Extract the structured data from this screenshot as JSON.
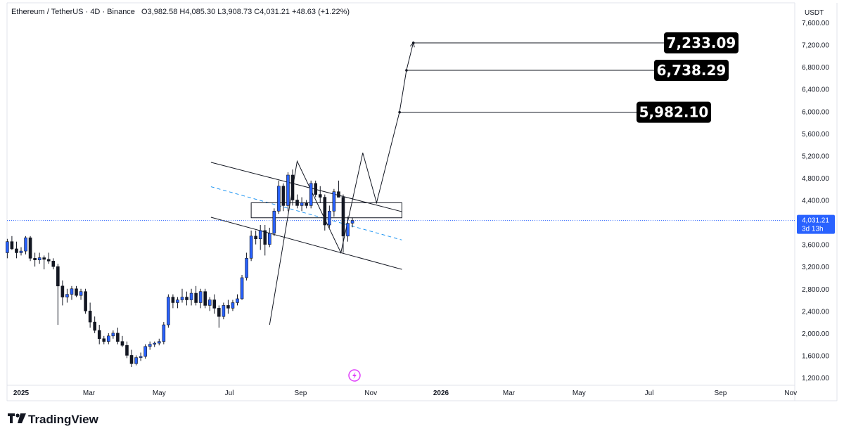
{
  "header": {
    "symbol": "Ethereum / TetherUS",
    "interval": "4D",
    "exchange": "Binance",
    "ohlc_text": "O3,982.58 H4,085.30 L3,908.73 C4,031.21 +48.63 (+1.22%)"
  },
  "currency": "USDT",
  "current_price": {
    "value": 4031.21,
    "label": "4,031.21",
    "countdown": "3d 13h"
  },
  "watermark": "TradingView",
  "colors": {
    "up": "#2962ff",
    "down": "#131722",
    "price_tag": "#2962ff",
    "target_box": "#000000",
    "midline": "#2196f3"
  },
  "targets": [
    {
      "value": 7233.09,
      "label": "7,233.09"
    },
    {
      "value": 6738.29,
      "label": "6,738.29"
    },
    {
      "value": 5982.1,
      "label": "5,982.10"
    }
  ],
  "chart_data": {
    "type": "candlestick",
    "y_axis": {
      "ylim": [
        1200,
        7600
      ],
      "ticks": [
        1200,
        1600,
        2000,
        2400,
        2800,
        3200,
        3600,
        4000,
        4400,
        4800,
        5200,
        5600,
        6000,
        6400,
        6800,
        7200,
        7600
      ],
      "tick_labels": [
        "1,200.00",
        "1,600.00",
        "2,000.00",
        "2,400.00",
        "2,800.00",
        "3,200.00",
        "3,600.00",
        "4,000.00",
        "4,400.00",
        "4,800.00",
        "5,200.00",
        "5,600.00",
        "6,000.00",
        "6,400.00",
        "6,800.00",
        "7,200.00",
        "7,600.00"
      ],
      "position": "right"
    },
    "x_axis": {
      "labels": [
        {
          "label": "2025",
          "date": "2025-01-01",
          "bold": true
        },
        {
          "label": "Mar",
          "date": "2025-03-01",
          "bold": false
        },
        {
          "label": "May",
          "date": "2025-05-01",
          "bold": false
        },
        {
          "label": "Jul",
          "date": "2025-07-01",
          "bold": false
        },
        {
          "label": "Sep",
          "date": "2025-09-01",
          "bold": false
        },
        {
          "label": "Nov",
          "date": "2025-11-01",
          "bold": false
        },
        {
          "label": "2026",
          "date": "2026-01-01",
          "bold": true
        },
        {
          "label": "Mar",
          "date": "2026-03-01",
          "bold": false
        },
        {
          "label": "May",
          "date": "2026-05-01",
          "bold": false
        },
        {
          "label": "Jul",
          "date": "2026-07-01",
          "bold": false
        },
        {
          "label": "Sep",
          "date": "2026-09-01",
          "bold": false
        },
        {
          "label": "Nov",
          "date": "2026-11-01",
          "bold": false
        }
      ]
    },
    "candles": [
      {
        "t": "2024-12-20",
        "o": 3450,
        "h": 3700,
        "l": 3350,
        "c": 3650
      },
      {
        "t": "2024-12-24",
        "o": 3650,
        "h": 3750,
        "l": 3500,
        "c": 3520
      },
      {
        "t": "2024-12-28",
        "o": 3520,
        "h": 3650,
        "l": 3350,
        "c": 3450
      },
      {
        "t": "2025-01-01",
        "o": 3450,
        "h": 3550,
        "l": 3400,
        "c": 3480
      },
      {
        "t": "2025-01-05",
        "o": 3480,
        "h": 3750,
        "l": 3420,
        "c": 3720
      },
      {
        "t": "2025-01-09",
        "o": 3720,
        "h": 3750,
        "l": 3300,
        "c": 3350
      },
      {
        "t": "2025-01-13",
        "o": 3350,
        "h": 3450,
        "l": 3200,
        "c": 3320
      },
      {
        "t": "2025-01-17",
        "o": 3320,
        "h": 3450,
        "l": 3250,
        "c": 3360
      },
      {
        "t": "2025-01-21",
        "o": 3360,
        "h": 3400,
        "l": 3150,
        "c": 3330
      },
      {
        "t": "2025-01-25",
        "o": 3330,
        "h": 3450,
        "l": 3250,
        "c": 3300
      },
      {
        "t": "2025-01-29",
        "o": 3300,
        "h": 3350,
        "l": 3150,
        "c": 3200
      },
      {
        "t": "2025-02-02",
        "o": 3200,
        "h": 3250,
        "l": 2150,
        "c": 2850
      },
      {
        "t": "2025-02-06",
        "o": 2850,
        "h": 2950,
        "l": 2500,
        "c": 2650
      },
      {
        "t": "2025-02-10",
        "o": 2650,
        "h": 2800,
        "l": 2550,
        "c": 2700
      },
      {
        "t": "2025-02-14",
        "o": 2700,
        "h": 2850,
        "l": 2600,
        "c": 2800
      },
      {
        "t": "2025-02-18",
        "o": 2800,
        "h": 2850,
        "l": 2650,
        "c": 2680
      },
      {
        "t": "2025-02-22",
        "o": 2680,
        "h": 2800,
        "l": 2600,
        "c": 2750
      },
      {
        "t": "2025-02-26",
        "o": 2750,
        "h": 2800,
        "l": 2350,
        "c": 2400
      },
      {
        "t": "2025-03-02",
        "o": 2400,
        "h": 2550,
        "l": 2100,
        "c": 2200
      },
      {
        "t": "2025-03-06",
        "o": 2200,
        "h": 2300,
        "l": 2000,
        "c": 2050
      },
      {
        "t": "2025-03-10",
        "o": 2050,
        "h": 2150,
        "l": 1800,
        "c": 1900
      },
      {
        "t": "2025-03-14",
        "o": 1900,
        "h": 1950,
        "l": 1800,
        "c": 1850
      },
      {
        "t": "2025-03-18",
        "o": 1850,
        "h": 2000,
        "l": 1800,
        "c": 1950
      },
      {
        "t": "2025-03-22",
        "o": 1950,
        "h": 2050,
        "l": 1900,
        "c": 2000
      },
      {
        "t": "2025-03-26",
        "o": 2000,
        "h": 2100,
        "l": 1800,
        "c": 1850
      },
      {
        "t": "2025-03-30",
        "o": 1850,
        "h": 1950,
        "l": 1750,
        "c": 1780
      },
      {
        "t": "2025-04-03",
        "o": 1780,
        "h": 1850,
        "l": 1550,
        "c": 1600
      },
      {
        "t": "2025-04-07",
        "o": 1600,
        "h": 1700,
        "l": 1390,
        "c": 1450
      },
      {
        "t": "2025-04-11",
        "o": 1450,
        "h": 1600,
        "l": 1420,
        "c": 1560
      },
      {
        "t": "2025-04-15",
        "o": 1560,
        "h": 1650,
        "l": 1500,
        "c": 1580
      },
      {
        "t": "2025-04-19",
        "o": 1580,
        "h": 1800,
        "l": 1540,
        "c": 1760
      },
      {
        "t": "2025-04-23",
        "o": 1760,
        "h": 1850,
        "l": 1700,
        "c": 1800
      },
      {
        "t": "2025-04-27",
        "o": 1800,
        "h": 1850,
        "l": 1750,
        "c": 1820
      },
      {
        "t": "2025-05-01",
        "o": 1820,
        "h": 1900,
        "l": 1780,
        "c": 1850
      },
      {
        "t": "2025-05-05",
        "o": 1850,
        "h": 2200,
        "l": 1800,
        "c": 2150
      },
      {
        "t": "2025-05-09",
        "o": 2150,
        "h": 2700,
        "l": 2100,
        "c": 2650
      },
      {
        "t": "2025-05-13",
        "o": 2650,
        "h": 2700,
        "l": 2450,
        "c": 2550
      },
      {
        "t": "2025-05-17",
        "o": 2550,
        "h": 2650,
        "l": 2450,
        "c": 2600
      },
      {
        "t": "2025-05-21",
        "o": 2600,
        "h": 2800,
        "l": 2550,
        "c": 2650
      },
      {
        "t": "2025-05-25",
        "o": 2650,
        "h": 2750,
        "l": 2500,
        "c": 2600
      },
      {
        "t": "2025-05-29",
        "o": 2600,
        "h": 2800,
        "l": 2500,
        "c": 2720
      },
      {
        "t": "2025-06-02",
        "o": 2720,
        "h": 2850,
        "l": 2500,
        "c": 2550
      },
      {
        "t": "2025-06-06",
        "o": 2550,
        "h": 2800,
        "l": 2450,
        "c": 2750
      },
      {
        "t": "2025-06-10",
        "o": 2750,
        "h": 2800,
        "l": 2450,
        "c": 2500
      },
      {
        "t": "2025-06-14",
        "o": 2500,
        "h": 2650,
        "l": 2400,
        "c": 2600
      },
      {
        "t": "2025-06-18",
        "o": 2600,
        "h": 2700,
        "l": 2350,
        "c": 2450
      },
      {
        "t": "2025-06-22",
        "o": 2450,
        "h": 2500,
        "l": 2100,
        "c": 2300
      },
      {
        "t": "2025-06-26",
        "o": 2300,
        "h": 2550,
        "l": 2250,
        "c": 2500
      },
      {
        "t": "2025-06-30",
        "o": 2500,
        "h": 2600,
        "l": 2350,
        "c": 2450
      },
      {
        "t": "2025-07-04",
        "o": 2450,
        "h": 2600,
        "l": 2400,
        "c": 2550
      },
      {
        "t": "2025-07-08",
        "o": 2550,
        "h": 2700,
        "l": 2500,
        "c": 2620
      },
      {
        "t": "2025-07-12",
        "o": 2620,
        "h": 3050,
        "l": 2600,
        "c": 3000
      },
      {
        "t": "2025-07-16",
        "o": 3000,
        "h": 3450,
        "l": 2950,
        "c": 3350
      },
      {
        "t": "2025-07-20",
        "o": 3350,
        "h": 3850,
        "l": 3300,
        "c": 3750
      },
      {
        "t": "2025-07-24",
        "o": 3750,
        "h": 3850,
        "l": 3600,
        "c": 3700
      },
      {
        "t": "2025-07-28",
        "o": 3700,
        "h": 3950,
        "l": 3500,
        "c": 3850
      },
      {
        "t": "2025-08-01",
        "o": 3850,
        "h": 3950,
        "l": 3400,
        "c": 3600
      },
      {
        "t": "2025-08-05",
        "o": 3600,
        "h": 3900,
        "l": 3550,
        "c": 3800
      },
      {
        "t": "2025-08-09",
        "o": 3800,
        "h": 4250,
        "l": 3750,
        "c": 4200
      },
      {
        "t": "2025-08-13",
        "o": 4200,
        "h": 4750,
        "l": 4150,
        "c": 4650
      },
      {
        "t": "2025-08-17",
        "o": 4650,
        "h": 4700,
        "l": 4200,
        "c": 4300
      },
      {
        "t": "2025-08-21",
        "o": 4300,
        "h": 4900,
        "l": 4200,
        "c": 4850
      },
      {
        "t": "2025-08-25",
        "o": 4850,
        "h": 4950,
        "l": 4300,
        "c": 4400
      },
      {
        "t": "2025-08-29",
        "o": 4400,
        "h": 4500,
        "l": 4250,
        "c": 4300
      },
      {
        "t": "2025-09-02",
        "o": 4300,
        "h": 4450,
        "l": 4200,
        "c": 4350
      },
      {
        "t": "2025-09-06",
        "o": 4350,
        "h": 4400,
        "l": 4250,
        "c": 4300
      },
      {
        "t": "2025-09-10",
        "o": 4300,
        "h": 4750,
        "l": 4250,
        "c": 4700
      },
      {
        "t": "2025-09-14",
        "o": 4700,
        "h": 4750,
        "l": 4450,
        "c": 4500
      },
      {
        "t": "2025-09-18",
        "o": 4500,
        "h": 4650,
        "l": 4350,
        "c": 4450
      },
      {
        "t": "2025-09-22",
        "o": 4450,
        "h": 4500,
        "l": 3850,
        "c": 3950
      },
      {
        "t": "2025-09-26",
        "o": 3950,
        "h": 4300,
        "l": 3900,
        "c": 4200
      },
      {
        "t": "2025-09-30",
        "o": 4200,
        "h": 4600,
        "l": 4100,
        "c": 4550
      },
      {
        "t": "2025-10-04",
        "o": 4550,
        "h": 4750,
        "l": 4450,
        "c": 4450
      },
      {
        "t": "2025-10-08",
        "o": 4450,
        "h": 4500,
        "l": 3450,
        "c": 3750
      },
      {
        "t": "2025-10-12",
        "o": 3750,
        "h": 4100,
        "l": 3650,
        "c": 3980
      },
      {
        "t": "2025-10-16",
        "o": 3982.58,
        "h": 4085.3,
        "l": 3908.73,
        "c": 4031.21
      }
    ],
    "annotations": {
      "descending_channel": [
        {
          "from": [
            "2025-06-15",
            5080
          ],
          "to": [
            "2025-11-28",
            4190
          ]
        },
        {
          "from": [
            "2025-06-15",
            4090
          ],
          "to": [
            "2025-11-28",
            3150
          ]
        }
      ],
      "channel_midline": {
        "from": [
          "2025-06-15",
          4640
        ],
        "to": [
          "2025-11-28",
          3680
        ],
        "style": "dashed"
      },
      "zone_rectangle": {
        "from": [
          "2025-07-20",
          4350
        ],
        "to": [
          "2025-11-28",
          4080
        ]
      },
      "projection_path": [
        [
          "2025-08-05",
          2150
        ],
        [
          "2025-08-29",
          5100
        ],
        [
          "2025-10-06",
          3450
        ],
        [
          "2025-10-25",
          5250
        ],
        [
          "2025-11-06",
          4350
        ],
        [
          "2025-11-26",
          5990
        ],
        [
          "2025-12-02",
          6740
        ],
        [
          "2025-12-08",
          7240
        ]
      ],
      "target_lines": [
        {
          "from": [
            "2025-12-08",
            7233.09
          ],
          "target": 0
        },
        {
          "from": [
            "2025-12-02",
            6738.29
          ],
          "target": 1
        },
        {
          "from": [
            "2025-11-26",
            5982.1
          ],
          "target": 2
        }
      ]
    }
  }
}
